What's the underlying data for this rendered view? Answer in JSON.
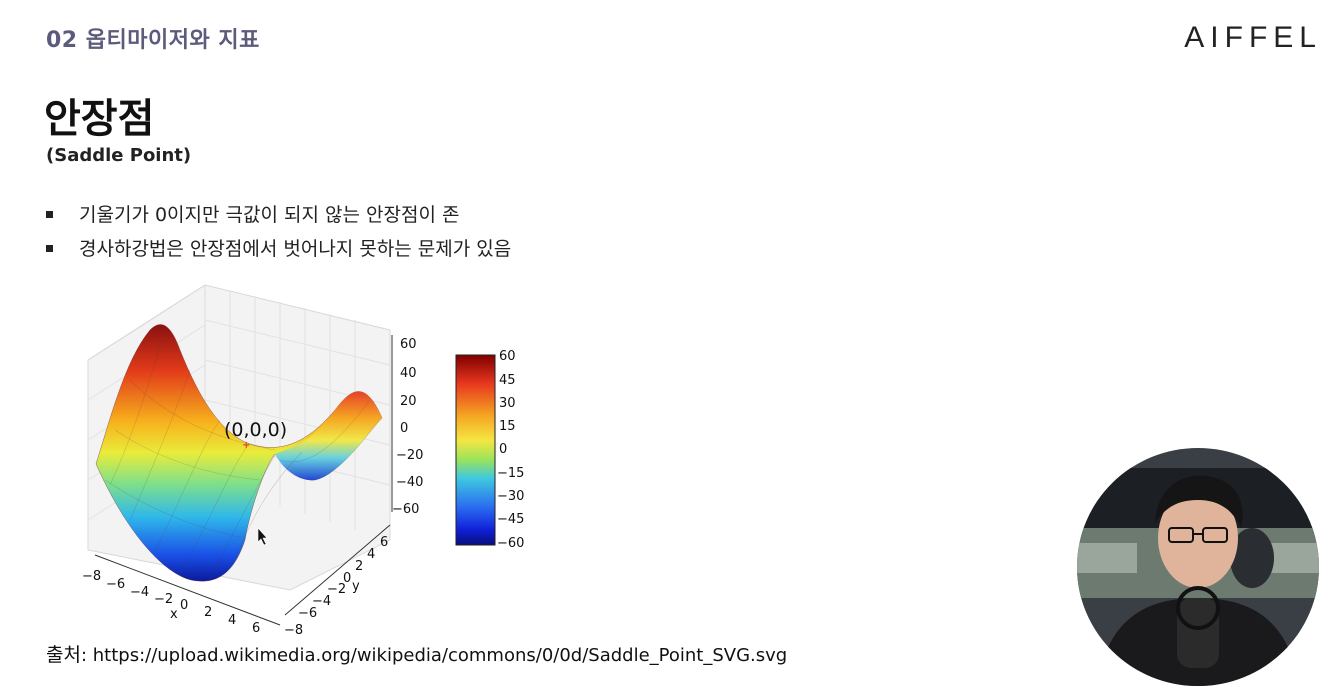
{
  "header": {
    "section": "02 옵티마이저와 지표",
    "brand": "AIFFEL"
  },
  "slide": {
    "title": "안장점",
    "subtitle": "(Saddle Point)",
    "bullets": [
      "기울기가 0이지만 극값이 되지 않는 안장점이 존",
      "경사하강법은 안장점에서 벗어나지 못하는 문제가 있음"
    ]
  },
  "figure": {
    "point_label": "(0,0,0)",
    "z_ticks": [
      "60",
      "40",
      "20",
      "0",
      "−20",
      "−40",
      "−60"
    ],
    "y_ticks": [
      "6",
      "4",
      "2",
      "0",
      "−2",
      "−4",
      "−6",
      "−8"
    ],
    "x_ticks": [
      "−8",
      "−6",
      "−4",
      "−2",
      "0",
      "2",
      "4",
      "6"
    ],
    "x_axis_label": "x",
    "y_axis_label": "y",
    "colorbar_ticks": [
      "60",
      "45",
      "30",
      "15",
      "0",
      "−15",
      "−30",
      "−45",
      "−60"
    ],
    "colors": {
      "high": "#b2182b",
      "mid": "#f5e642",
      "low": "#0a1a8c"
    }
  },
  "source": {
    "prefix": "출처",
    "url": ": https://upload.wikimedia.org/wikipedia/commons/0/0d/Saddle_Point_SVG.svg"
  },
  "webcam": {
    "icon": "presenter-avatar-icon"
  }
}
